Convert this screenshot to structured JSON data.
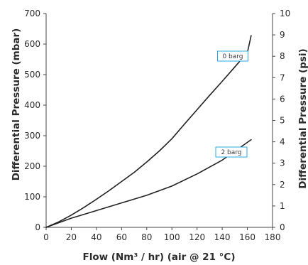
{
  "chart_data": {
    "type": "line",
    "title": "",
    "xlabel": "Flow (Nm³ / hr) (air @ 21 °C)",
    "ylabel": "Differential Pressure (mbar)",
    "y2label": "Differential Pressure (psi)",
    "xlim": [
      0,
      180
    ],
    "ylim": [
      0,
      700
    ],
    "y2lim": [
      0,
      10
    ],
    "xticks": [
      "0",
      "20",
      "40",
      "60",
      "80",
      "100",
      "120",
      "140",
      "160",
      "180"
    ],
    "yticks": [
      "0",
      "100",
      "200",
      "300",
      "400",
      "500",
      "600",
      "700"
    ],
    "y2ticks": [
      "0",
      "1",
      "2",
      "3",
      "4",
      "5",
      "6",
      "7",
      "8",
      "9",
      "10"
    ],
    "grid": false,
    "line_color": "#222222",
    "annotation_color": "#29a9e1",
    "series": [
      {
        "name": "0 barg",
        "x": [
          0,
          10,
          20,
          30,
          40,
          50,
          60,
          70,
          80,
          90,
          100,
          110,
          120,
          130,
          140,
          150,
          160,
          163
        ],
        "y": [
          0,
          18,
          40,
          65,
          92,
          120,
          150,
          180,
          214,
          250,
          290,
          338,
          385,
          432,
          478,
          525,
          572,
          628
        ]
      },
      {
        "name": "2 barg",
        "x": [
          0,
          20,
          40,
          60,
          80,
          100,
          120,
          140,
          163
        ],
        "y": [
          0,
          30,
          55,
          80,
          105,
          135,
          175,
          220,
          287
        ]
      }
    ]
  }
}
